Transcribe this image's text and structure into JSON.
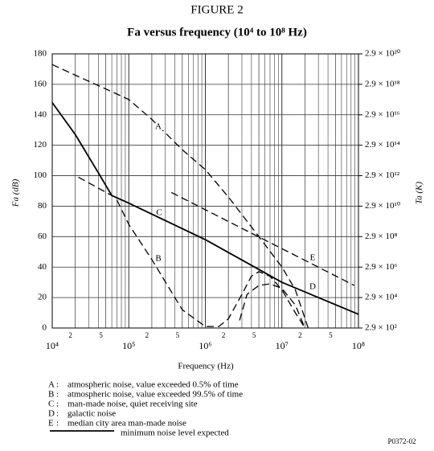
{
  "chart_data": {
    "type": "line",
    "figure": "FIGURE 2",
    "title": "Fa versus frequency (10⁴ to 10⁸ Hz)",
    "xlabel": "Frequency (Hz)",
    "ylabel": "Fa (dB)",
    "y2label": "Ta (K)",
    "xscale": "log",
    "y2scale": "log",
    "grid": true,
    "xlim": [
      10000,
      100000000
    ],
    "ylim": [
      0,
      180
    ],
    "y2lim": [
      290,
      2.9e+20
    ],
    "xticks": [
      {
        "value": 10000,
        "label": "10⁴"
      },
      {
        "value": 20000,
        "label": "2"
      },
      {
        "value": 50000,
        "label": "5"
      },
      {
        "value": 100000,
        "label": "10⁵"
      },
      {
        "value": 200000,
        "label": "2"
      },
      {
        "value": 500000,
        "label": "5"
      },
      {
        "value": 1000000,
        "label": "10⁶"
      },
      {
        "value": 2000000,
        "label": "2"
      },
      {
        "value": 5000000,
        "label": "5"
      },
      {
        "value": 10000000,
        "label": "10⁷"
      },
      {
        "value": 20000000,
        "label": "2"
      },
      {
        "value": 50000000,
        "label": "5"
      },
      {
        "value": 100000000,
        "label": "10⁸"
      }
    ],
    "xminorticks": [
      30000,
      40000,
      60000,
      70000,
      80000,
      90000,
      300000,
      400000,
      600000,
      700000,
      800000,
      900000,
      3000000,
      4000000,
      6000000,
      7000000,
      8000000,
      9000000,
      30000000,
      40000000,
      60000000,
      70000000,
      80000000,
      90000000
    ],
    "yticks": [
      0,
      20,
      40,
      60,
      80,
      100,
      120,
      140,
      160,
      180
    ],
    "y2ticks": [
      {
        "value": 290,
        "label": "2.9 × 10²"
      },
      {
        "value": 29000,
        "label": "2.9 × 10⁴"
      },
      {
        "value": 2900000,
        "label": "2.9 × 10⁶"
      },
      {
        "value": 290000000,
        "label": "2.9 × 10⁸"
      },
      {
        "value": 29000000000,
        "label": "2.9 × 10¹⁰"
      },
      {
        "value": 2900000000000,
        "label": "2.9 × 10¹²"
      },
      {
        "value": 290000000000000,
        "label": "2.9 × 10¹⁴"
      },
      {
        "value": 29000000000000000,
        "label": "2.9 × 10¹⁶"
      },
      {
        "value": 2.9e+18,
        "label": "2.9 × 10¹⁸"
      },
      {
        "value": 2.9e+20,
        "label": "2.9 × 10²⁰"
      }
    ],
    "series": [
      {
        "key": "A",
        "name": "atmospheric noise, value exceeded 0.5% of time",
        "color": "#000000",
        "dashed": true,
        "x": [
          10000,
          20000,
          50000,
          100000,
          200000,
          500000,
          1000000,
          2000000,
          5000000,
          10000000,
          15000000,
          22000000
        ],
        "values": [
          173,
          166,
          157,
          150,
          137,
          117,
          104,
          86,
          60,
          40,
          25,
          0
        ]
      },
      {
        "key": "B",
        "name": "atmospheric noise, value exceeded 99.5% of time",
        "color": "#000000",
        "dashed": true,
        "x": [
          70000,
          100000,
          200000,
          500000,
          1000000,
          1500000,
          2000000,
          3000000,
          4000000,
          5000000,
          7000000,
          10000000,
          15000000,
          20000000
        ],
        "values": [
          84,
          68,
          45,
          12,
          1,
          1,
          6,
          22,
          34,
          37,
          34,
          25,
          10,
          0
        ]
      },
      {
        "key": "C",
        "name": "man-made noise, quiet receiving site",
        "color": "#000000",
        "dashed": true,
        "x": [
          22000,
          60000,
          100000,
          1000000,
          10000000,
          100000000
        ],
        "values": [
          99,
          87,
          82,
          58,
          30,
          9
        ]
      },
      {
        "key": "D",
        "name": "galactic noise",
        "color": "#000000",
        "dashed": true,
        "x": [
          2800000,
          3500000,
          5000000,
          7000000,
          10000000,
          15000000,
          20000000
        ],
        "values": [
          5,
          22,
          28,
          29,
          26,
          15,
          0
        ]
      },
      {
        "key": "E",
        "name": "median city area man-made noise",
        "color": "#000000",
        "dashed": true,
        "x": [
          360000,
          88000000
        ],
        "values": [
          89,
          28
        ]
      },
      {
        "name": "minimum noise level expected",
        "color": "#000000",
        "dashed": false,
        "x": [
          10000,
          20000,
          40000,
          60000,
          100000,
          1000000,
          10000000,
          100000000
        ],
        "values": [
          148,
          127,
          102,
          87,
          82,
          58,
          30,
          9
        ]
      }
    ],
    "figure_id": "P0372-02"
  }
}
